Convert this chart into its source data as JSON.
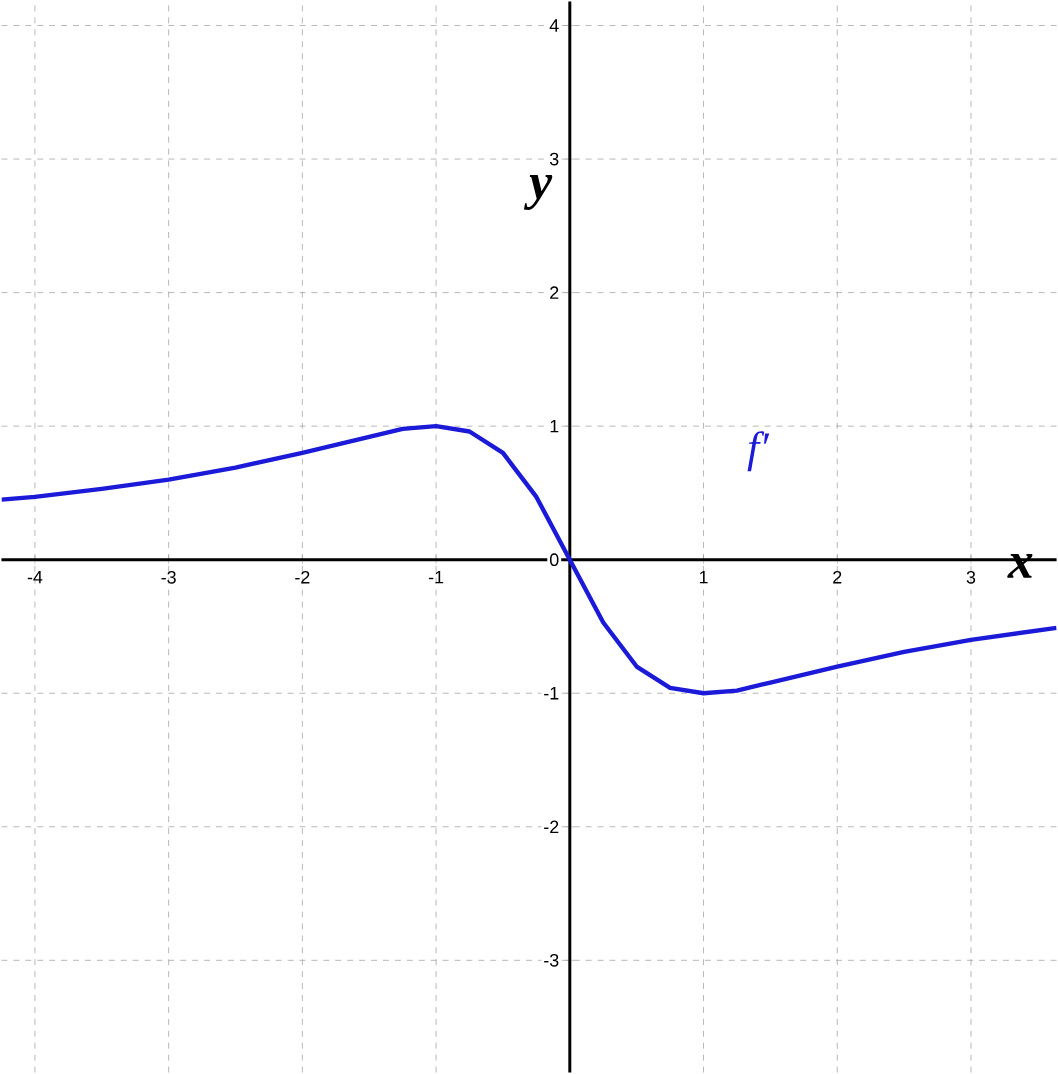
{
  "chart_data": {
    "type": "line",
    "xlabel": "x",
    "ylabel": "y",
    "x": [
      -4.25,
      -4,
      -3.5,
      -3,
      -2.5,
      -2,
      -1.5,
      -1.25,
      -1,
      -0.75,
      -0.5,
      -0.25,
      0,
      0.25,
      0.5,
      0.75,
      1,
      1.25,
      1.5,
      2,
      2.5,
      3,
      3.64
    ],
    "series": [
      {
        "name": "f′",
        "color": "#1a1ad8",
        "values": [
          0.45,
          0.47,
          0.53,
          0.6,
          0.69,
          0.8,
          0.92,
          0.98,
          1,
          0.96,
          0.8,
          0.47,
          0,
          -0.47,
          -0.8,
          -0.96,
          -1,
          -0.98,
          -0.92,
          -0.8,
          -0.69,
          -0.6,
          -0.51
        ]
      }
    ],
    "xlim": [
      -4.25,
      3.64
    ],
    "ylim": [
      -3.84,
      4.18
    ],
    "xticks": [
      -4,
      -3,
      -2,
      -1,
      1,
      2,
      3
    ],
    "yticks": [
      -3,
      -2,
      -1,
      0,
      1,
      2,
      3,
      4
    ],
    "grid": true,
    "marker": "none",
    "line_style": "solid"
  }
}
